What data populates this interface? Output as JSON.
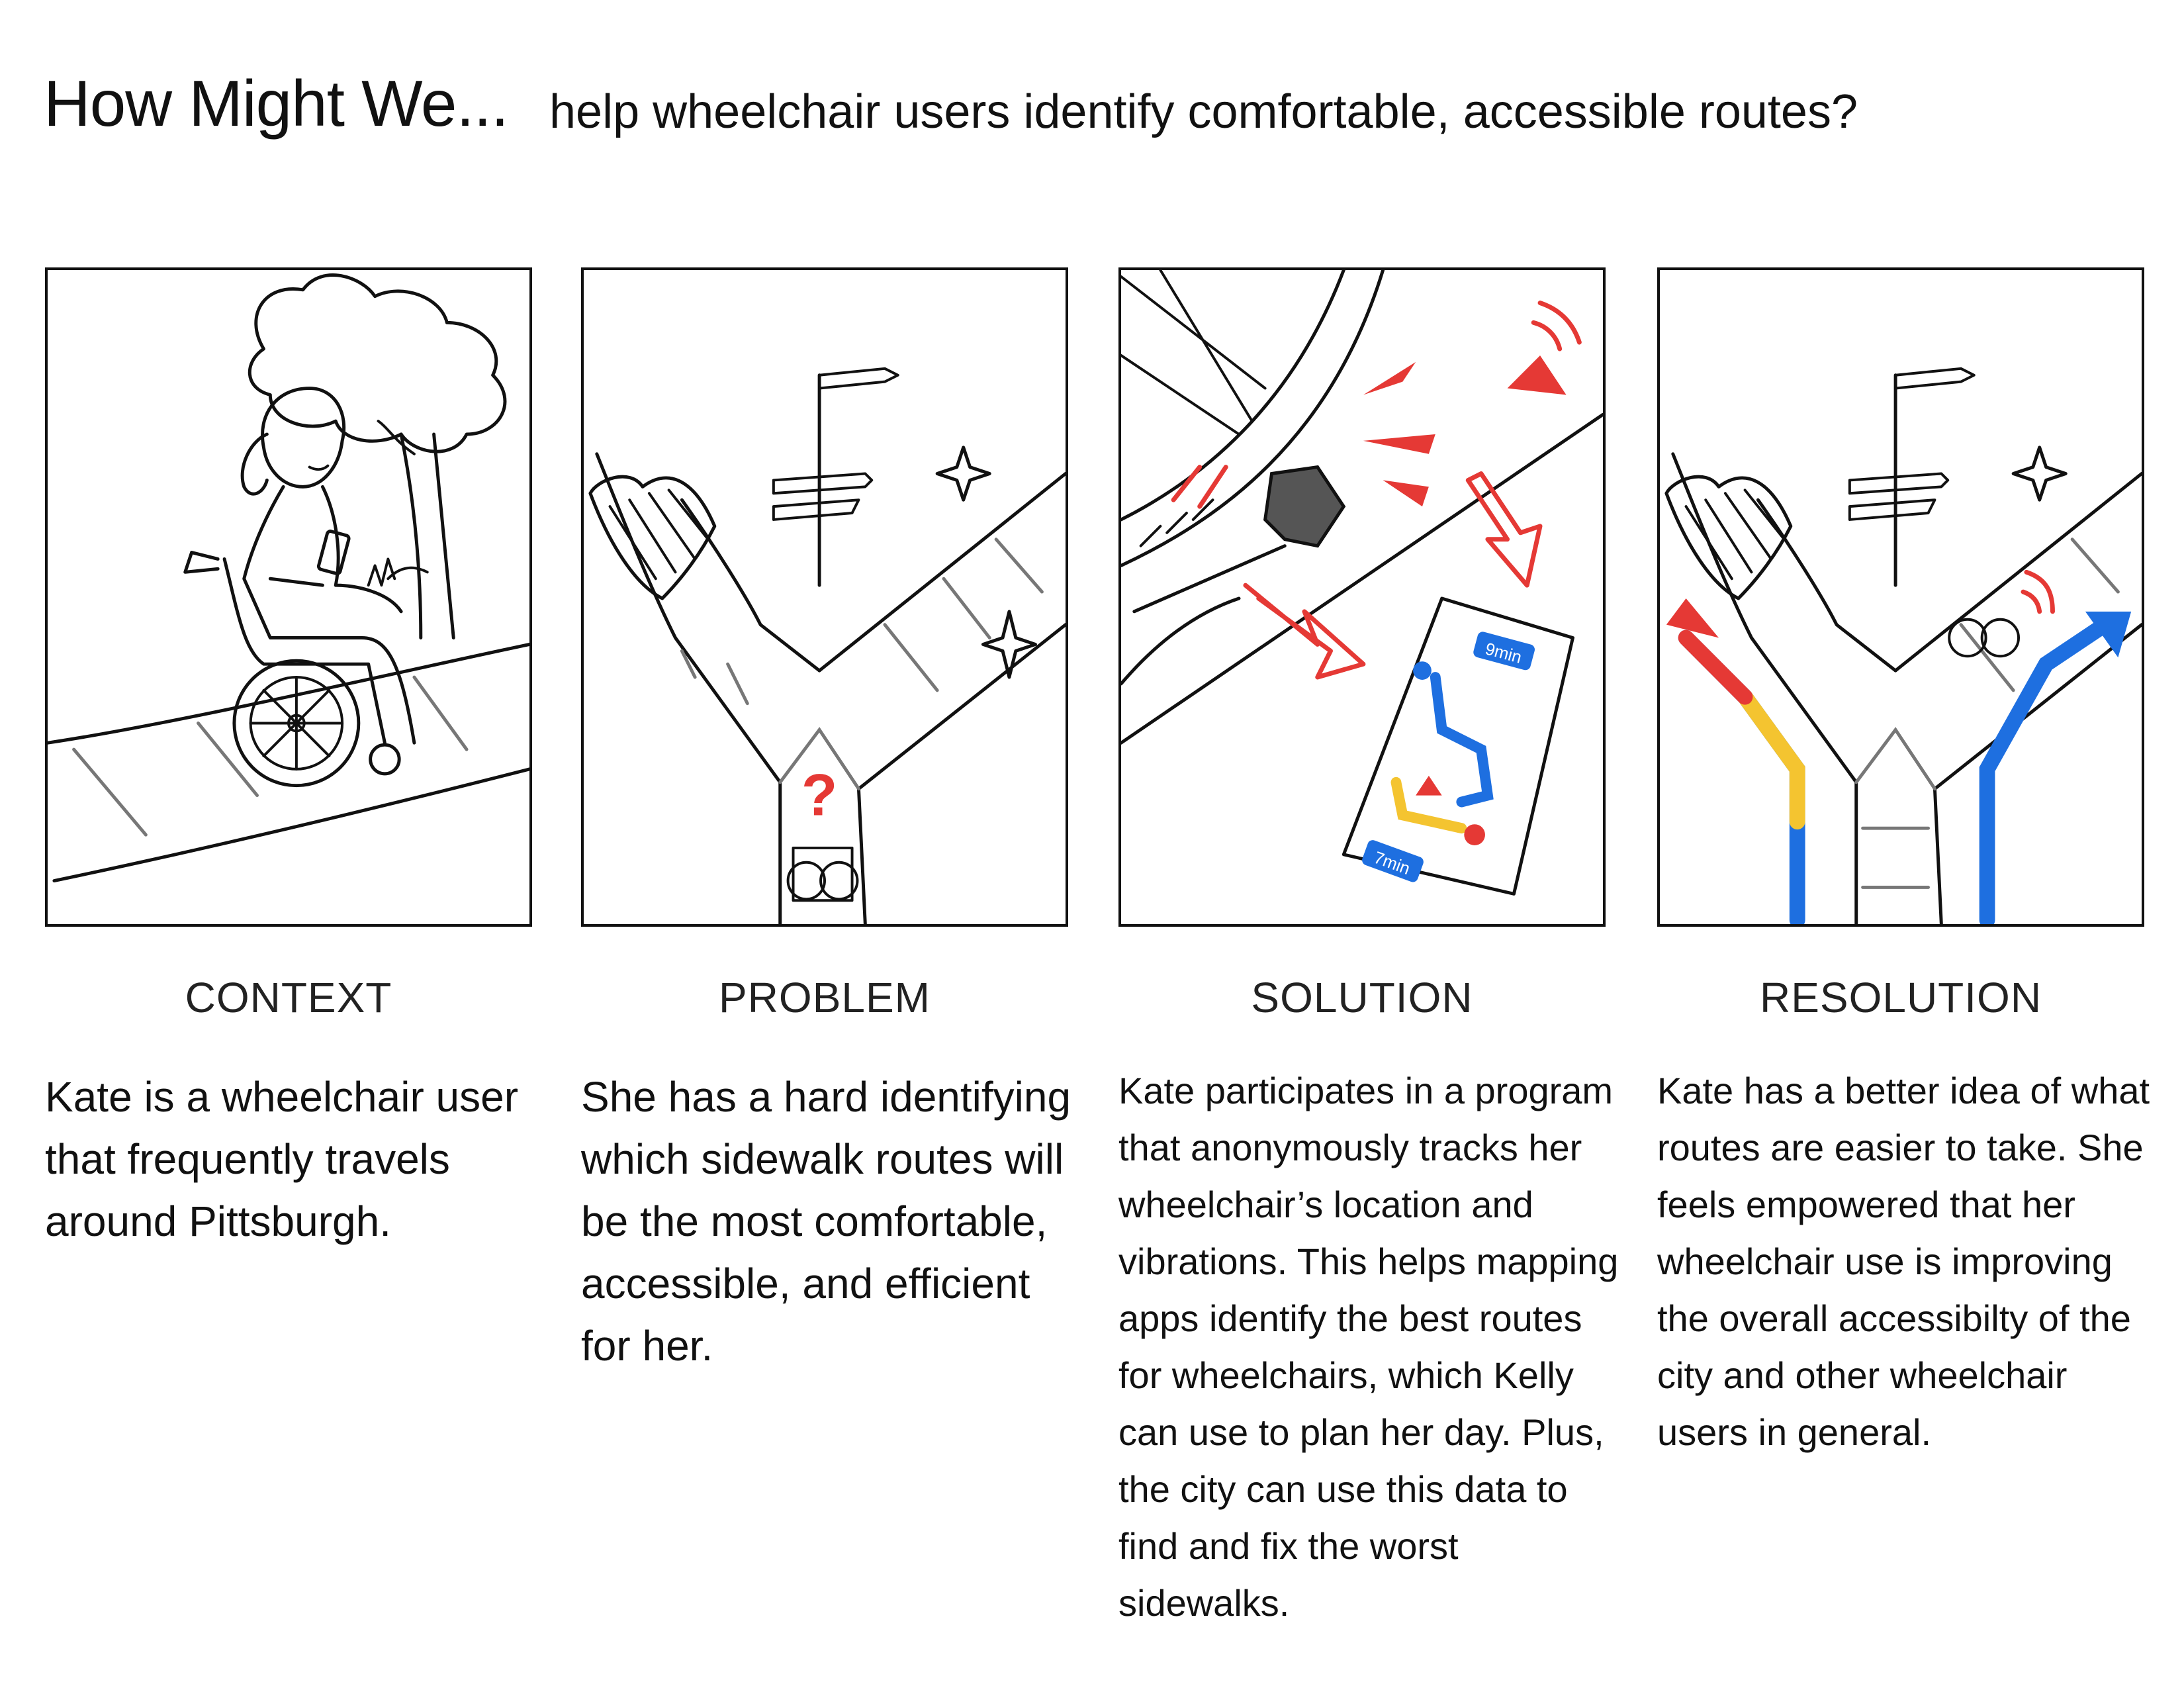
{
  "header": {
    "hmw": "How Might We...",
    "question": "help wheelchair users identify comfortable, accessible routes?"
  },
  "panels": [
    {
      "label": "CONTEXT",
      "text": "Kate is a wheelchair user that frequently travels around Pittsburgh."
    },
    {
      "label": "PROBLEM",
      "text": "She has a hard identifying which sidewalk routes will be the most comfortable, accessible, and efficient for her.",
      "question_mark": "?"
    },
    {
      "label": "SOLUTION",
      "text": "Kate participates in a program that anonymously tracks her wheelchair’s location and vibrations. This helps mapping apps identify the best routes for wheelchairs, which Kelly can use to plan her day. Plus, the city can use this data to find and fix the worst sidewalks.",
      "map_badge_top": "9min",
      "map_badge_bottom": "7min"
    },
    {
      "label": "RESOLUTION",
      "text": "Kate has a better idea of what routes are easier to take. She feels empowered that her wheelchair use is improving the overall accessibilty of the city and other wheelchair users in general."
    }
  ],
  "colors": {
    "red": "#e53935",
    "yellow": "#f4c430",
    "blue": "#1e6fe0"
  }
}
